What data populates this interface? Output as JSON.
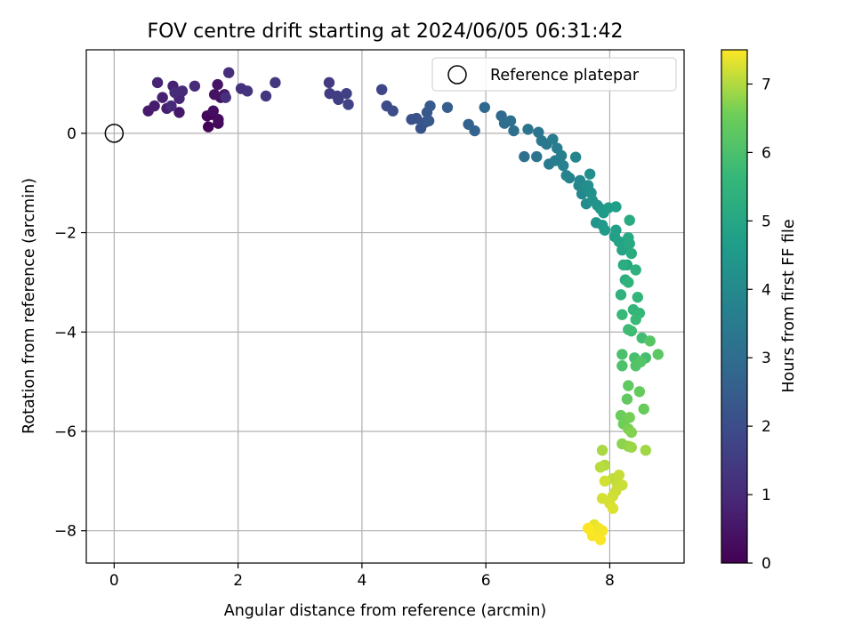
{
  "chart_data": {
    "type": "scatter",
    "title": "FOV centre drift starting at 2024/06/05 06:31:42",
    "xlabel": "Angular distance from reference (arcmin)",
    "ylabel": "Rotation from reference (arcmin)",
    "xlim": [
      -0.45,
      9.2
    ],
    "ylim": [
      -8.65,
      1.68
    ],
    "xticks": [
      0,
      2,
      4,
      6,
      8
    ],
    "yticks": [
      0,
      -2,
      -4,
      -6,
      -8
    ],
    "grid": true,
    "legend": {
      "position": "top-right",
      "entries": [
        "Reference platepar"
      ]
    },
    "colorbar": {
      "label": "Hours from first FF file",
      "colormap": "viridis",
      "range": [
        0,
        7.5
      ],
      "ticks": [
        0,
        1,
        2,
        3,
        4,
        5,
        6,
        7
      ]
    },
    "reference_point": {
      "x": 0,
      "y": 0,
      "label": "Reference platepar"
    },
    "series": [
      {
        "columns": [
          "x",
          "y",
          "hours"
        ],
        "points": [
          [
            1.52,
            0.13,
            0.05
          ],
          [
            1.57,
            0.38,
            0.1
          ],
          [
            1.5,
            0.35,
            0.15
          ],
          [
            1.68,
            0.2,
            0.2
          ],
          [
            1.68,
            0.28,
            0.25
          ],
          [
            1.6,
            0.45,
            0.3
          ],
          [
            1.72,
            0.72,
            0.35
          ],
          [
            1.62,
            0.78,
            0.4
          ],
          [
            1.67,
            0.98,
            0.45
          ],
          [
            1.78,
            0.78,
            0.5
          ],
          [
            1.05,
            0.42,
            0.55
          ],
          [
            0.55,
            0.45,
            0.6
          ],
          [
            0.65,
            0.55,
            0.65
          ],
          [
            0.85,
            0.5,
            0.7
          ],
          [
            0.78,
            0.72,
            0.75
          ],
          [
            0.95,
            0.95,
            0.8
          ],
          [
            0.7,
            1.02,
            0.85
          ],
          [
            1.05,
            0.7,
            0.9
          ],
          [
            1.1,
            0.85,
            0.95
          ],
          [
            1.3,
            0.95,
            1.0
          ],
          [
            0.92,
            0.55,
            1.0
          ],
          [
            0.98,
            0.82,
            1.05
          ],
          [
            1.85,
            1.22,
            1.1
          ],
          [
            1.8,
            0.72,
            1.15
          ],
          [
            2.05,
            0.9,
            1.2
          ],
          [
            2.15,
            0.85,
            1.25
          ],
          [
            2.45,
            0.75,
            1.3
          ],
          [
            2.6,
            1.02,
            1.35
          ],
          [
            3.47,
            1.02,
            1.45
          ],
          [
            3.48,
            0.8,
            1.5
          ],
          [
            3.6,
            0.75,
            1.55
          ],
          [
            3.62,
            0.68,
            1.6
          ],
          [
            3.75,
            0.8,
            1.65
          ],
          [
            3.78,
            0.58,
            1.7
          ],
          [
            4.32,
            0.88,
            1.8
          ],
          [
            4.4,
            0.55,
            1.9
          ],
          [
            4.5,
            0.45,
            2.0
          ],
          [
            4.8,
            0.28,
            2.1
          ],
          [
            4.88,
            0.3,
            2.15
          ],
          [
            4.95,
            0.1,
            2.2
          ],
          [
            5.02,
            0.22,
            2.25
          ],
          [
            5.05,
            0.42,
            2.3
          ],
          [
            5.08,
            0.25,
            2.35
          ],
          [
            5.1,
            0.55,
            2.4
          ],
          [
            5.38,
            0.52,
            2.5
          ],
          [
            5.72,
            0.18,
            2.6
          ],
          [
            5.82,
            0.05,
            2.7
          ],
          [
            5.98,
            0.52,
            2.8
          ],
          [
            6.25,
            0.35,
            2.9
          ],
          [
            6.3,
            0.2,
            3.0
          ],
          [
            6.4,
            0.25,
            3.05
          ],
          [
            6.45,
            0.05,
            3.1
          ],
          [
            6.62,
            -0.47,
            3.15
          ],
          [
            6.68,
            0.08,
            3.2
          ],
          [
            6.82,
            -0.47,
            3.25
          ],
          [
            6.85,
            0.02,
            3.3
          ],
          [
            6.9,
            -0.15,
            3.35
          ],
          [
            6.98,
            -0.22,
            3.4
          ],
          [
            7.02,
            -0.62,
            3.45
          ],
          [
            7.08,
            -0.12,
            3.5
          ],
          [
            7.12,
            -0.55,
            3.55
          ],
          [
            7.15,
            -0.3,
            3.6
          ],
          [
            7.22,
            -0.45,
            3.65
          ],
          [
            7.25,
            -0.65,
            3.7
          ],
          [
            7.3,
            -0.85,
            3.75
          ],
          [
            7.35,
            -0.9,
            3.8
          ],
          [
            7.45,
            -0.48,
            3.85
          ],
          [
            7.5,
            -1.05,
            3.9
          ],
          [
            7.52,
            -0.95,
            3.95
          ],
          [
            7.55,
            -1.22,
            4.0
          ],
          [
            7.58,
            -1.08,
            4.05
          ],
          [
            7.62,
            -1.42,
            4.1
          ],
          [
            7.65,
            -1.05,
            4.15
          ],
          [
            7.68,
            -0.82,
            4.2
          ],
          [
            7.7,
            -1.2,
            4.25
          ],
          [
            7.72,
            -1.35,
            4.3
          ],
          [
            7.78,
            -1.8,
            4.35
          ],
          [
            7.8,
            -1.45,
            4.4
          ],
          [
            7.85,
            -1.52,
            4.45
          ],
          [
            7.88,
            -1.85,
            4.5
          ],
          [
            7.9,
            -1.6,
            4.55
          ],
          [
            7.92,
            -1.95,
            4.6
          ],
          [
            7.98,
            -1.5,
            4.65
          ],
          [
            8.08,
            -2.08,
            4.7
          ],
          [
            8.1,
            -1.48,
            4.75
          ],
          [
            8.1,
            -1.95,
            4.8
          ],
          [
            8.15,
            -2.18,
            4.85
          ],
          [
            8.2,
            -2.35,
            4.9
          ],
          [
            8.25,
            -2.28,
            4.95
          ],
          [
            8.28,
            -2.65,
            5.0
          ],
          [
            8.3,
            -2.1,
            5.05
          ],
          [
            8.32,
            -2.22,
            5.1
          ],
          [
            8.32,
            -1.75,
            5.15
          ],
          [
            8.35,
            -2.42,
            5.2
          ],
          [
            8.22,
            -2.65,
            5.25
          ],
          [
            8.25,
            -2.95,
            5.3
          ],
          [
            8.42,
            -2.75,
            5.35
          ],
          [
            8.18,
            -3.25,
            5.4
          ],
          [
            8.3,
            -3.0,
            5.45
          ],
          [
            8.38,
            -3.55,
            5.5
          ],
          [
            8.45,
            -3.3,
            5.55
          ],
          [
            8.48,
            -3.62,
            5.6
          ],
          [
            8.2,
            -3.65,
            5.65
          ],
          [
            8.42,
            -3.75,
            5.7
          ],
          [
            8.3,
            -3.95,
            5.75
          ],
          [
            8.35,
            -3.98,
            5.8
          ],
          [
            8.52,
            -4.12,
            5.85
          ],
          [
            8.58,
            -4.52,
            5.9
          ],
          [
            8.4,
            -4.52,
            5.95
          ],
          [
            8.2,
            -4.45,
            6.0
          ],
          [
            8.2,
            -4.68,
            6.05
          ],
          [
            8.42,
            -4.68,
            6.1
          ],
          [
            8.5,
            -4.6,
            6.15
          ],
          [
            8.65,
            -4.18,
            6.2
          ],
          [
            8.78,
            -4.45,
            6.25
          ],
          [
            8.3,
            -5.08,
            6.3
          ],
          [
            8.28,
            -5.35,
            6.35
          ],
          [
            8.48,
            -5.2,
            6.4
          ],
          [
            8.55,
            -5.55,
            6.45
          ],
          [
            8.18,
            -5.68,
            6.5
          ],
          [
            8.22,
            -5.85,
            6.55
          ],
          [
            8.32,
            -5.72,
            6.6
          ],
          [
            8.3,
            -5.95,
            6.65
          ],
          [
            8.35,
            -6.02,
            6.7
          ],
          [
            8.2,
            -6.25,
            6.75
          ],
          [
            8.3,
            -6.3,
            6.8
          ],
          [
            8.35,
            -6.32,
            6.85
          ],
          [
            8.58,
            -6.38,
            6.9
          ],
          [
            7.88,
            -6.38,
            6.95
          ],
          [
            7.92,
            -6.68,
            7.0
          ],
          [
            7.85,
            -6.72,
            7.05
          ],
          [
            8.05,
            -6.95,
            7.1
          ],
          [
            8.12,
            -7.05,
            7.12
          ],
          [
            8.15,
            -6.88,
            7.14
          ],
          [
            8.2,
            -7.08,
            7.16
          ],
          [
            8.1,
            -7.2,
            7.18
          ],
          [
            8.05,
            -7.3,
            7.2
          ],
          [
            7.92,
            -7.0,
            7.22
          ],
          [
            7.88,
            -7.35,
            7.24
          ],
          [
            8.0,
            -7.45,
            7.26
          ],
          [
            8.05,
            -7.55,
            7.28
          ],
          [
            7.75,
            -7.88,
            7.35
          ],
          [
            7.78,
            -8.02,
            7.38
          ],
          [
            7.7,
            -8.0,
            7.4
          ],
          [
            7.82,
            -7.95,
            7.42
          ],
          [
            7.88,
            -8.0,
            7.44
          ],
          [
            7.72,
            -8.1,
            7.46
          ],
          [
            7.85,
            -8.18,
            7.48
          ],
          [
            7.65,
            -7.95,
            7.5
          ]
        ]
      }
    ]
  }
}
